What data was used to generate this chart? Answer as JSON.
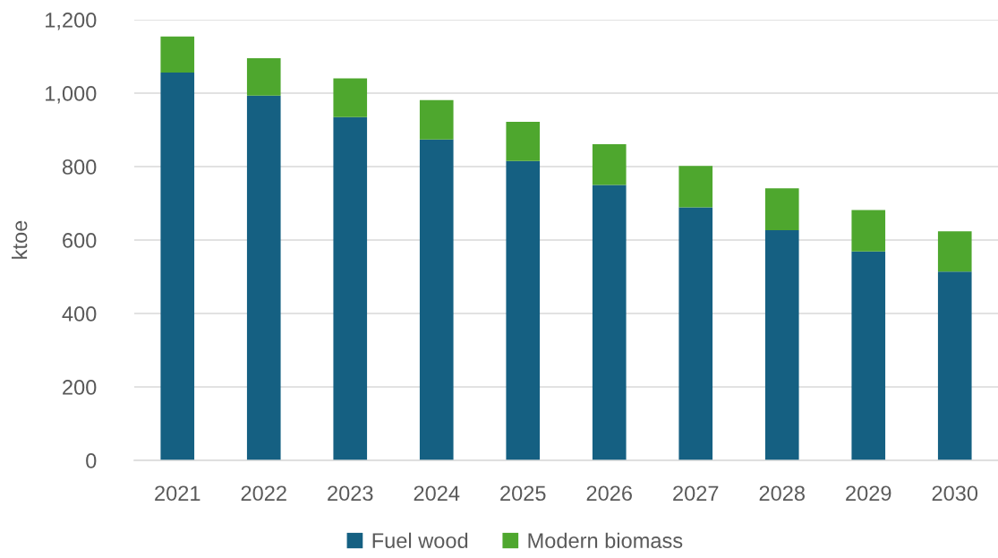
{
  "chart_data": {
    "type": "bar",
    "ylabel": "ktoe",
    "categories": [
      "2021",
      "2022",
      "2023",
      "2024",
      "2025",
      "2026",
      "2027",
      "2028",
      "2029",
      "2030"
    ],
    "series": [
      {
        "name": "Fuel wood",
        "color": "#156082",
        "values": [
          1056,
          993,
          935,
          874,
          815,
          750,
          689,
          627,
          569,
          514
        ]
      },
      {
        "name": "Modern biomass",
        "color": "#4ea72e",
        "values": [
          98,
          102,
          105,
          107,
          107,
          111,
          113,
          114,
          113,
          110
        ]
      }
    ],
    "stacked": true,
    "ylim": [
      0,
      1200
    ],
    "yticks": [
      0,
      200,
      400,
      600,
      800,
      {
        "value": 1000,
        "label": "1,000"
      },
      {
        "value": 1200,
        "label": "1,200"
      }
    ],
    "grid": "y",
    "legend": "bottom"
  }
}
